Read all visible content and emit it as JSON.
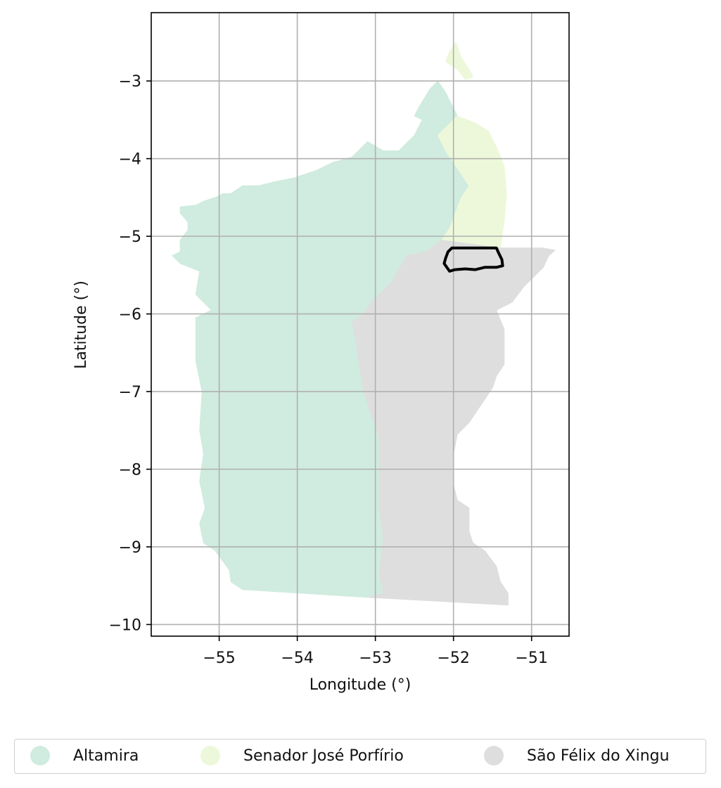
{
  "chart_data": {
    "type": "choropleth-map",
    "xlabel": "Longitude (°)",
    "ylabel": "Latitude (°)",
    "xlim": [
      -55.87,
      -50.52
    ],
    "ylim": [
      -10.15,
      -2.12
    ],
    "x_ticks": [
      -55,
      -54,
      -53,
      -52,
      -51
    ],
    "x_tick_labels": [
      "−55",
      "−54",
      "−53",
      "−52",
      "−51"
    ],
    "y_ticks": [
      -3,
      -4,
      -5,
      -6,
      -7,
      -8,
      -9,
      -10
    ],
    "y_tick_labels": [
      "−3",
      "−4",
      "−5",
      "−6",
      "−7",
      "−8",
      "−9",
      "−10"
    ],
    "grid": true,
    "legend_position": "bottom",
    "regions": [
      {
        "name": "Altamira",
        "color": "#d0ebdf",
        "outline": [
          [
            -54.7,
            -9.55
          ],
          [
            -54.85,
            -9.45
          ],
          [
            -54.87,
            -9.3
          ],
          [
            -55.05,
            -9.05
          ],
          [
            -55.2,
            -8.95
          ],
          [
            -55.25,
            -8.7
          ],
          [
            -55.18,
            -8.5
          ],
          [
            -55.25,
            -8.15
          ],
          [
            -55.2,
            -7.8
          ],
          [
            -55.25,
            -7.5
          ],
          [
            -55.22,
            -7.0
          ],
          [
            -55.3,
            -6.6
          ],
          [
            -55.3,
            -6.05
          ],
          [
            -55.2,
            -6.0
          ],
          [
            -55.1,
            -5.95
          ],
          [
            -55.2,
            -5.85
          ],
          [
            -55.3,
            -5.75
          ],
          [
            -55.25,
            -5.45
          ],
          [
            -55.5,
            -5.35
          ],
          [
            -55.6,
            -5.25
          ],
          [
            -55.5,
            -5.2
          ],
          [
            -55.5,
            -5.05
          ],
          [
            -55.4,
            -4.92
          ],
          [
            -55.4,
            -4.82
          ],
          [
            -55.5,
            -4.7
          ],
          [
            -55.5,
            -4.62
          ],
          [
            -55.3,
            -4.6
          ],
          [
            -55.2,
            -4.55
          ],
          [
            -55.05,
            -4.5
          ],
          [
            -54.95,
            -4.45
          ],
          [
            -54.85,
            -4.45
          ],
          [
            -54.7,
            -4.35
          ],
          [
            -54.5,
            -4.35
          ],
          [
            -54.3,
            -4.3
          ],
          [
            -54.05,
            -4.25
          ],
          [
            -53.75,
            -4.15
          ],
          [
            -53.55,
            -4.05
          ],
          [
            -53.3,
            -3.98
          ],
          [
            -53.1,
            -3.78
          ],
          [
            -52.9,
            -3.9
          ],
          [
            -52.7,
            -3.9
          ],
          [
            -52.5,
            -3.7
          ],
          [
            -52.4,
            -3.5
          ],
          [
            -52.5,
            -3.45
          ],
          [
            -52.45,
            -3.35
          ],
          [
            -52.3,
            -3.1
          ],
          [
            -52.2,
            -3.0
          ],
          [
            -52.1,
            -3.15
          ],
          [
            -52.0,
            -3.35
          ],
          [
            -51.95,
            -3.45
          ],
          [
            -52.2,
            -3.7
          ],
          [
            -52.1,
            -3.9
          ],
          [
            -51.9,
            -4.2
          ],
          [
            -51.8,
            -4.35
          ],
          [
            -51.9,
            -4.5
          ],
          [
            -52.05,
            -4.9
          ],
          [
            -52.15,
            -5.05
          ],
          [
            -52.35,
            -5.2
          ],
          [
            -52.6,
            -5.25
          ],
          [
            -52.8,
            -5.6
          ],
          [
            -53.05,
            -5.85
          ],
          [
            -53.15,
            -6.0
          ],
          [
            -53.3,
            -6.1
          ],
          [
            -53.25,
            -6.35
          ],
          [
            -53.2,
            -6.7
          ],
          [
            -53.15,
            -7.0
          ],
          [
            -53.05,
            -7.3
          ],
          [
            -52.95,
            -7.6
          ],
          [
            -52.95,
            -8.0
          ],
          [
            -52.95,
            -8.5
          ],
          [
            -52.9,
            -8.9
          ],
          [
            -52.95,
            -9.35
          ],
          [
            -52.9,
            -9.6
          ],
          [
            -53.1,
            -9.65
          ]
        ]
      },
      {
        "name": "Senador José Porfírio",
        "color": "#edf8da",
        "outline": [
          [
            -51.97,
            -2.5
          ],
          [
            -52.05,
            -2.62
          ],
          [
            -52.1,
            -2.75
          ],
          [
            -51.95,
            -2.85
          ],
          [
            -51.85,
            -2.98
          ],
          [
            -51.75,
            -2.95
          ],
          [
            -51.8,
            -2.85
          ],
          [
            -51.9,
            -2.7
          ]
        ],
        "outline_2": [
          [
            -52.2,
            -3.7
          ],
          [
            -52.1,
            -3.9
          ],
          [
            -51.9,
            -4.2
          ],
          [
            -51.8,
            -4.35
          ],
          [
            -51.9,
            -4.5
          ],
          [
            -52.05,
            -4.9
          ],
          [
            -52.15,
            -5.05
          ],
          [
            -51.4,
            -5.15
          ],
          [
            -51.35,
            -4.8
          ],
          [
            -51.32,
            -4.45
          ],
          [
            -51.35,
            -4.1
          ],
          [
            -51.45,
            -3.85
          ],
          [
            -51.55,
            -3.65
          ],
          [
            -51.7,
            -3.55
          ],
          [
            -51.95,
            -3.45
          ]
        ]
      },
      {
        "name": "São Félix do Xingu",
        "color": "#dedede",
        "outline": [
          [
            -52.35,
            -5.2
          ],
          [
            -52.6,
            -5.25
          ],
          [
            -52.8,
            -5.6
          ],
          [
            -53.05,
            -5.85
          ],
          [
            -53.15,
            -6.0
          ],
          [
            -53.3,
            -6.1
          ],
          [
            -53.25,
            -6.35
          ],
          [
            -53.2,
            -6.7
          ],
          [
            -53.15,
            -7.0
          ],
          [
            -53.05,
            -7.3
          ],
          [
            -52.95,
            -7.6
          ],
          [
            -52.95,
            -8.0
          ],
          [
            -52.95,
            -8.5
          ],
          [
            -52.9,
            -8.9
          ],
          [
            -52.95,
            -9.35
          ],
          [
            -52.9,
            -9.6
          ],
          [
            -53.1,
            -9.65
          ],
          [
            -51.3,
            -9.75
          ],
          [
            -51.3,
            -9.6
          ],
          [
            -51.4,
            -9.45
          ],
          [
            -51.45,
            -9.25
          ],
          [
            -51.6,
            -9.05
          ],
          [
            -51.75,
            -8.95
          ],
          [
            -51.8,
            -8.8
          ],
          [
            -51.8,
            -8.65
          ],
          [
            -51.8,
            -8.5
          ],
          [
            -51.95,
            -8.4
          ],
          [
            -52.0,
            -8.2
          ],
          [
            -52.0,
            -8.0
          ],
          [
            -52.0,
            -7.8
          ],
          [
            -51.95,
            -7.55
          ],
          [
            -51.8,
            -7.4
          ],
          [
            -51.6,
            -7.1
          ],
          [
            -51.5,
            -6.95
          ],
          [
            -51.45,
            -6.8
          ],
          [
            -51.35,
            -6.65
          ],
          [
            -51.35,
            -6.2
          ],
          [
            -51.45,
            -5.95
          ],
          [
            -51.25,
            -5.85
          ],
          [
            -51.1,
            -5.65
          ],
          [
            -50.95,
            -5.5
          ],
          [
            -50.85,
            -5.4
          ],
          [
            -50.78,
            -5.25
          ],
          [
            -50.7,
            -5.18
          ],
          [
            -50.85,
            -5.15
          ],
          [
            -51.4,
            -5.15
          ],
          [
            -52.15,
            -5.05
          ]
        ]
      }
    ],
    "highlight_outline": {
      "color": "#000000",
      "outline": [
        [
          -52.02,
          -5.15
        ],
        [
          -51.45,
          -5.15
        ],
        [
          -51.42,
          -5.22
        ],
        [
          -51.38,
          -5.3
        ],
        [
          -51.37,
          -5.38
        ],
        [
          -51.45,
          -5.4
        ],
        [
          -51.6,
          -5.4
        ],
        [
          -51.72,
          -5.43
        ],
        [
          -51.85,
          -5.42
        ],
        [
          -51.98,
          -5.43
        ],
        [
          -52.05,
          -5.45
        ],
        [
          -52.12,
          -5.35
        ],
        [
          -52.1,
          -5.28
        ],
        [
          -52.07,
          -5.2
        ]
      ]
    }
  },
  "legend": {
    "items": [
      {
        "label": "Altamira",
        "color": "#d0ebdf"
      },
      {
        "label": "Senador José Porfírio",
        "color": "#edf8da"
      },
      {
        "label": "São Félix do Xingu",
        "color": "#dedede"
      }
    ]
  }
}
